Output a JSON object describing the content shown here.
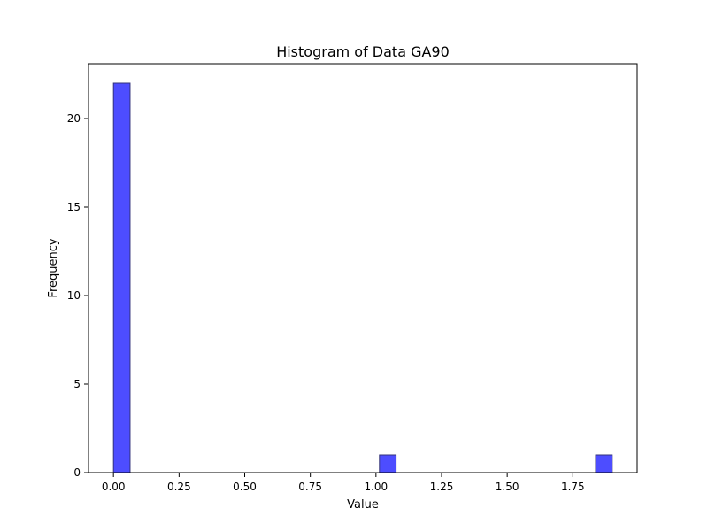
{
  "chart_data": {
    "type": "bar",
    "title": "Histogram of Data GA90",
    "xlabel": "Value",
    "ylabel": "Frequency",
    "xlim": [
      -0.095,
      1.995
    ],
    "ylim": [
      0,
      23.1
    ],
    "x_ticks": [
      0.0,
      0.25,
      0.5,
      0.75,
      1.0,
      1.25,
      1.5,
      1.75
    ],
    "x_tick_labels": [
      "0.00",
      "0.25",
      "0.50",
      "0.75",
      "1.00",
      "1.25",
      "1.50",
      "1.75"
    ],
    "y_ticks": [
      0,
      5,
      10,
      15,
      20
    ],
    "y_tick_labels": [
      "0",
      "5",
      "10",
      "15",
      "20"
    ],
    "bars": [
      {
        "x_start": 0.0,
        "x_end": 0.0633,
        "value": 22
      },
      {
        "x_start": 1.0133,
        "x_end": 1.0767,
        "value": 1
      },
      {
        "x_start": 1.8367,
        "x_end": 1.9,
        "value": 1
      }
    ],
    "grid": false,
    "bar_color": "#4d4dff",
    "bar_edge_color": "#33337a"
  }
}
